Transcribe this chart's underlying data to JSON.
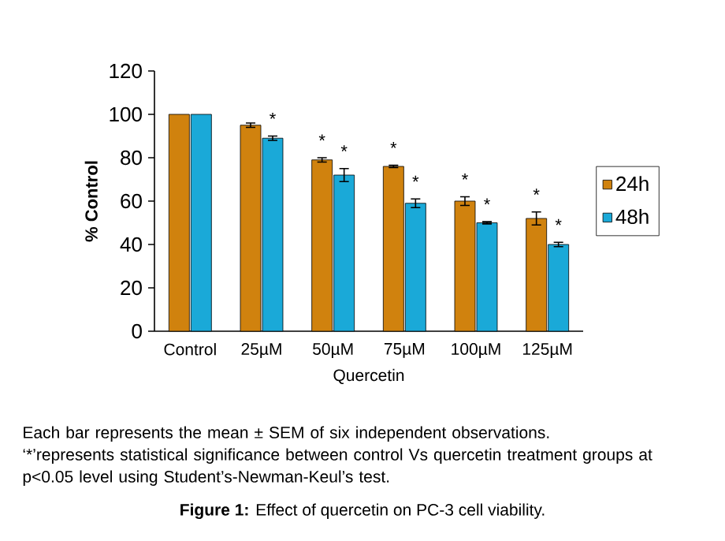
{
  "chart_data": {
    "type": "bar",
    "categories": [
      "Control",
      "25µM",
      "50µM",
      "75µM",
      "100µM",
      "125µM"
    ],
    "series": [
      {
        "name": "24h",
        "color": "#d0820e",
        "values": [
          100,
          95,
          79,
          76,
          60,
          52
        ],
        "errors": [
          null,
          1,
          1,
          0.5,
          2,
          3
        ],
        "value_labels": [
          null,
          null,
          "*",
          "*",
          "*",
          "*"
        ]
      },
      {
        "name": "48h",
        "color": "#1aa9d8",
        "values": [
          100,
          89,
          72,
          59,
          50,
          40
        ],
        "errors": [
          null,
          1,
          3,
          2,
          0.5,
          1
        ],
        "value_labels": [
          null,
          "*",
          "*",
          "*",
          "*",
          "*"
        ]
      }
    ],
    "xlabel": "Quercetin",
    "ylabel": "% Control",
    "ylim": [
      0,
      120
    ],
    "yticks": [
      0,
      20,
      40,
      60,
      80,
      100,
      120
    ],
    "legend": "right",
    "grid": false,
    "annotations": [
      "Each bar represents the mean ± SEM of six independent observations.",
      "‘*’represents statistical significance between control Vs quercetin treatment groups at p<0.05 level using  Student’s-Newman-Keul’s test.",
      "**Figure 1:** Effect of quercetin on  PC-3 cell viability."
    ]
  }
}
